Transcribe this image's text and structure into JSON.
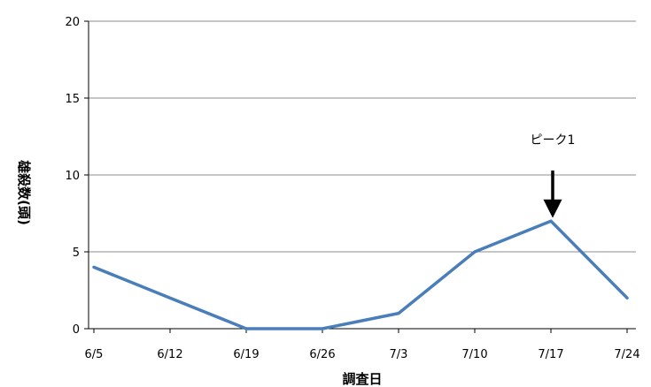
{
  "chart_data": {
    "type": "line",
    "title": "",
    "xlabel": "調査日",
    "ylabel": "雄殺数(頭)",
    "categories": [
      "6/5",
      "6/12",
      "6/19",
      "6/26",
      "7/3",
      "7/10",
      "7/17",
      "7/24"
    ],
    "series": [
      {
        "values": [
          4,
          2,
          0,
          0,
          1,
          5,
          7,
          2
        ],
        "color": "#4a7ebb"
      }
    ],
    "ylim": [
      0,
      20
    ],
    "yticks": [
      "0",
      "5",
      "10",
      "15",
      "20"
    ],
    "grid": true,
    "annotations": [
      {
        "text": "ピーク1",
        "category": "7/17"
      }
    ]
  }
}
